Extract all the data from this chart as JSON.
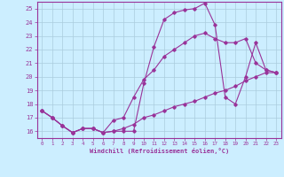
{
  "xlabel": "Windchill (Refroidissement éolien,°C)",
  "background_color": "#cceeff",
  "grid_color": "#aaccdd",
  "line_color": "#993399",
  "xlim": [
    -0.5,
    23.5
  ],
  "ylim": [
    15.5,
    25.5
  ],
  "yticks": [
    16,
    17,
    18,
    19,
    20,
    21,
    22,
    23,
    24,
    25
  ],
  "xticks": [
    0,
    1,
    2,
    3,
    4,
    5,
    6,
    7,
    8,
    9,
    10,
    11,
    12,
    13,
    14,
    15,
    16,
    17,
    18,
    19,
    20,
    21,
    22,
    23
  ],
  "series": [
    {
      "x": [
        0,
        1,
        2,
        3,
        4,
        5,
        6,
        7,
        8,
        9,
        10,
        11,
        12,
        13,
        14,
        15,
        16,
        17,
        18,
        19,
        20,
        21,
        22,
        23
      ],
      "y": [
        17.5,
        17.0,
        16.4,
        15.9,
        16.2,
        16.2,
        15.9,
        16.0,
        16.0,
        16.0,
        19.5,
        22.2,
        24.2,
        24.7,
        24.9,
        25.0,
        25.4,
        23.8,
        18.5,
        18.0,
        20.0,
        22.5,
        20.5,
        20.3
      ]
    },
    {
      "x": [
        0,
        1,
        2,
        3,
        4,
        5,
        6,
        7,
        8,
        9,
        10,
        11,
        12,
        13,
        14,
        15,
        16,
        17,
        18,
        19,
        20,
        21,
        22,
        23
      ],
      "y": [
        17.5,
        17.0,
        16.4,
        15.9,
        16.2,
        16.2,
        15.9,
        16.8,
        17.0,
        18.5,
        19.8,
        20.5,
        21.5,
        22.0,
        22.5,
        23.0,
        23.2,
        22.8,
        22.5,
        22.5,
        22.8,
        21.0,
        20.5,
        20.3
      ]
    },
    {
      "x": [
        0,
        1,
        2,
        3,
        4,
        5,
        6,
        7,
        8,
        9,
        10,
        11,
        12,
        13,
        14,
        15,
        16,
        17,
        18,
        19,
        20,
        21,
        22,
        23
      ],
      "y": [
        17.5,
        17.0,
        16.4,
        15.9,
        16.2,
        16.2,
        15.9,
        16.0,
        16.2,
        16.5,
        17.0,
        17.2,
        17.5,
        17.8,
        18.0,
        18.2,
        18.5,
        18.8,
        19.0,
        19.3,
        19.7,
        20.0,
        20.3,
        20.3
      ]
    }
  ]
}
